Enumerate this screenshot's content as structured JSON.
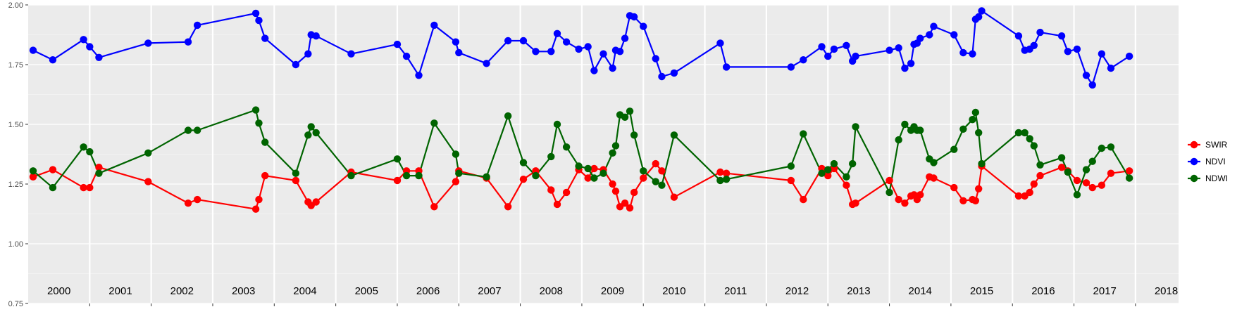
{
  "chart_data": {
    "type": "line",
    "title": "",
    "xlabel": "",
    "ylabel": "",
    "xlim": [
      2000.0,
      2018.7
    ],
    "ylim": [
      0.75,
      2.0
    ],
    "grid": true,
    "legend_position": "right",
    "y_ticks": [
      "0.75",
      "1.00",
      "1.25",
      "1.50",
      "1.75",
      "2.00"
    ],
    "year_labels": [
      "2000",
      "2001",
      "2002",
      "2003",
      "2004",
      "2005",
      "2006",
      "2007",
      "2008",
      "2009",
      "2010",
      "2011",
      "2012",
      "2013",
      "2014",
      "2015",
      "2016",
      "2017",
      "2018"
    ],
    "series": [
      {
        "name": "SWIR",
        "color": "#ff0000",
        "points": [
          [
            2000.08,
            1.28
          ],
          [
            2000.4,
            1.31
          ],
          [
            2000.9,
            1.235
          ],
          [
            2001.0,
            1.235
          ],
          [
            2001.15,
            1.32
          ],
          [
            2001.95,
            1.26
          ],
          [
            2002.6,
            1.17
          ],
          [
            2002.75,
            1.185
          ],
          [
            2003.7,
            1.145
          ],
          [
            2003.75,
            1.185
          ],
          [
            2003.85,
            1.285
          ],
          [
            2004.35,
            1.265
          ],
          [
            2004.55,
            1.175
          ],
          [
            2004.6,
            1.16
          ],
          [
            2004.68,
            1.175
          ],
          [
            2005.25,
            1.3
          ],
          [
            2006.0,
            1.265
          ],
          [
            2006.15,
            1.305
          ],
          [
            2006.35,
            1.305
          ],
          [
            2006.6,
            1.155
          ],
          [
            2006.95,
            1.26
          ],
          [
            2007.0,
            1.305
          ],
          [
            2007.45,
            1.275
          ],
          [
            2007.8,
            1.155
          ],
          [
            2008.05,
            1.27
          ],
          [
            2008.25,
            1.305
          ],
          [
            2008.5,
            1.225
          ],
          [
            2008.6,
            1.165
          ],
          [
            2008.75,
            1.215
          ],
          [
            2008.95,
            1.31
          ],
          [
            2009.1,
            1.275
          ],
          [
            2009.2,
            1.315
          ],
          [
            2009.35,
            1.31
          ],
          [
            2009.5,
            1.25
          ],
          [
            2009.55,
            1.22
          ],
          [
            2009.62,
            1.155
          ],
          [
            2009.7,
            1.17
          ],
          [
            2009.78,
            1.15
          ],
          [
            2009.85,
            1.215
          ],
          [
            2010.0,
            1.275
          ],
          [
            2010.2,
            1.335
          ],
          [
            2010.3,
            1.305
          ],
          [
            2010.5,
            1.195
          ],
          [
            2011.25,
            1.3
          ],
          [
            2011.35,
            1.295
          ],
          [
            2012.4,
            1.265
          ],
          [
            2012.6,
            1.185
          ],
          [
            2012.9,
            1.315
          ],
          [
            2013.0,
            1.285
          ],
          [
            2013.1,
            1.315
          ],
          [
            2013.3,
            1.245
          ],
          [
            2013.4,
            1.165
          ],
          [
            2013.45,
            1.17
          ],
          [
            2014.0,
            1.265
          ],
          [
            2014.15,
            1.185
          ],
          [
            2014.25,
            1.17
          ],
          [
            2014.35,
            1.2
          ],
          [
            2014.4,
            1.205
          ],
          [
            2014.45,
            1.185
          ],
          [
            2014.5,
            1.205
          ],
          [
            2014.65,
            1.28
          ],
          [
            2014.72,
            1.275
          ],
          [
            2015.05,
            1.235
          ],
          [
            2015.2,
            1.18
          ],
          [
            2015.35,
            1.185
          ],
          [
            2015.4,
            1.18
          ],
          [
            2015.45,
            1.23
          ],
          [
            2015.5,
            1.325
          ],
          [
            2016.1,
            1.2
          ],
          [
            2016.2,
            1.2
          ],
          [
            2016.28,
            1.215
          ],
          [
            2016.35,
            1.25
          ],
          [
            2016.45,
            1.285
          ],
          [
            2016.8,
            1.32
          ],
          [
            2016.9,
            1.305
          ],
          [
            2017.05,
            1.265
          ],
          [
            2017.2,
            1.255
          ],
          [
            2017.3,
            1.235
          ],
          [
            2017.45,
            1.245
          ],
          [
            2017.6,
            1.295
          ],
          [
            2017.9,
            1.305
          ]
        ]
      },
      {
        "name": "NDVI",
        "color": "#0000ff",
        "points": [
          [
            2000.08,
            1.81
          ],
          [
            2000.4,
            1.77
          ],
          [
            2000.9,
            1.855
          ],
          [
            2001.0,
            1.825
          ],
          [
            2001.15,
            1.78
          ],
          [
            2001.95,
            1.84
          ],
          [
            2002.6,
            1.845
          ],
          [
            2002.75,
            1.915
          ],
          [
            2003.7,
            1.965
          ],
          [
            2003.75,
            1.935
          ],
          [
            2003.85,
            1.86
          ],
          [
            2004.35,
            1.75
          ],
          [
            2004.55,
            1.795
          ],
          [
            2004.6,
            1.875
          ],
          [
            2004.68,
            1.87
          ],
          [
            2005.25,
            1.795
          ],
          [
            2006.0,
            1.835
          ],
          [
            2006.15,
            1.785
          ],
          [
            2006.35,
            1.705
          ],
          [
            2006.6,
            1.915
          ],
          [
            2006.95,
            1.845
          ],
          [
            2007.0,
            1.8
          ],
          [
            2007.45,
            1.755
          ],
          [
            2007.8,
            1.85
          ],
          [
            2008.05,
            1.85
          ],
          [
            2008.25,
            1.805
          ],
          [
            2008.5,
            1.805
          ],
          [
            2008.6,
            1.88
          ],
          [
            2008.75,
            1.845
          ],
          [
            2008.95,
            1.815
          ],
          [
            2009.1,
            1.825
          ],
          [
            2009.2,
            1.725
          ],
          [
            2009.35,
            1.795
          ],
          [
            2009.5,
            1.735
          ],
          [
            2009.55,
            1.81
          ],
          [
            2009.62,
            1.805
          ],
          [
            2009.7,
            1.86
          ],
          [
            2009.78,
            1.955
          ],
          [
            2009.85,
            1.95
          ],
          [
            2010.0,
            1.91
          ],
          [
            2010.2,
            1.775
          ],
          [
            2010.3,
            1.7
          ],
          [
            2010.5,
            1.715
          ],
          [
            2011.25,
            1.84
          ],
          [
            2011.35,
            1.74
          ],
          [
            2012.4,
            1.74
          ],
          [
            2012.6,
            1.77
          ],
          [
            2012.9,
            1.825
          ],
          [
            2013.0,
            1.785
          ],
          [
            2013.1,
            1.815
          ],
          [
            2013.3,
            1.83
          ],
          [
            2013.4,
            1.765
          ],
          [
            2013.45,
            1.785
          ],
          [
            2014.0,
            1.81
          ],
          [
            2014.15,
            1.82
          ],
          [
            2014.25,
            1.735
          ],
          [
            2014.35,
            1.755
          ],
          [
            2014.4,
            1.835
          ],
          [
            2014.45,
            1.84
          ],
          [
            2014.5,
            1.86
          ],
          [
            2014.65,
            1.875
          ],
          [
            2014.72,
            1.91
          ],
          [
            2015.05,
            1.875
          ],
          [
            2015.2,
            1.8
          ],
          [
            2015.35,
            1.795
          ],
          [
            2015.4,
            1.94
          ],
          [
            2015.45,
            1.95
          ],
          [
            2015.5,
            1.975
          ],
          [
            2016.1,
            1.87
          ],
          [
            2016.2,
            1.81
          ],
          [
            2016.28,
            1.815
          ],
          [
            2016.35,
            1.83
          ],
          [
            2016.45,
            1.885
          ],
          [
            2016.8,
            1.87
          ],
          [
            2016.9,
            1.805
          ],
          [
            2017.05,
            1.815
          ],
          [
            2017.2,
            1.705
          ],
          [
            2017.3,
            1.665
          ],
          [
            2017.45,
            1.795
          ],
          [
            2017.6,
            1.735
          ],
          [
            2017.9,
            1.785
          ]
        ]
      },
      {
        "name": "NDWI",
        "color": "#006400",
        "points": [
          [
            2000.08,
            1.305
          ],
          [
            2000.4,
            1.235
          ],
          [
            2000.9,
            1.405
          ],
          [
            2001.0,
            1.385
          ],
          [
            2001.15,
            1.295
          ],
          [
            2001.95,
            1.38
          ],
          [
            2002.6,
            1.475
          ],
          [
            2002.75,
            1.475
          ],
          [
            2003.7,
            1.56
          ],
          [
            2003.75,
            1.505
          ],
          [
            2003.85,
            1.425
          ],
          [
            2004.35,
            1.295
          ],
          [
            2004.55,
            1.455
          ],
          [
            2004.6,
            1.49
          ],
          [
            2004.68,
            1.465
          ],
          [
            2005.25,
            1.285
          ],
          [
            2006.0,
            1.355
          ],
          [
            2006.15,
            1.285
          ],
          [
            2006.35,
            1.285
          ],
          [
            2006.6,
            1.505
          ],
          [
            2006.95,
            1.375
          ],
          [
            2007.0,
            1.295
          ],
          [
            2007.45,
            1.28
          ],
          [
            2007.8,
            1.535
          ],
          [
            2008.05,
            1.34
          ],
          [
            2008.25,
            1.285
          ],
          [
            2008.5,
            1.365
          ],
          [
            2008.6,
            1.5
          ],
          [
            2008.75,
            1.405
          ],
          [
            2008.95,
            1.325
          ],
          [
            2009.1,
            1.315
          ],
          [
            2009.2,
            1.275
          ],
          [
            2009.35,
            1.295
          ],
          [
            2009.5,
            1.38
          ],
          [
            2009.55,
            1.41
          ],
          [
            2009.62,
            1.54
          ],
          [
            2009.7,
            1.53
          ],
          [
            2009.78,
            1.555
          ],
          [
            2009.85,
            1.455
          ],
          [
            2010.0,
            1.305
          ],
          [
            2010.2,
            1.26
          ],
          [
            2010.3,
            1.245
          ],
          [
            2010.5,
            1.455
          ],
          [
            2011.25,
            1.265
          ],
          [
            2011.35,
            1.27
          ],
          [
            2012.4,
            1.325
          ],
          [
            2012.6,
            1.46
          ],
          [
            2012.9,
            1.295
          ],
          [
            2013.0,
            1.31
          ],
          [
            2013.1,
            1.335
          ],
          [
            2013.3,
            1.28
          ],
          [
            2013.4,
            1.335
          ],
          [
            2013.45,
            1.49
          ],
          [
            2014.0,
            1.215
          ],
          [
            2014.15,
            1.435
          ],
          [
            2014.25,
            1.5
          ],
          [
            2014.35,
            1.475
          ],
          [
            2014.4,
            1.49
          ],
          [
            2014.45,
            1.475
          ],
          [
            2014.5,
            1.475
          ],
          [
            2014.65,
            1.355
          ],
          [
            2014.72,
            1.34
          ],
          [
            2015.05,
            1.395
          ],
          [
            2015.2,
            1.48
          ],
          [
            2015.35,
            1.52
          ],
          [
            2015.4,
            1.55
          ],
          [
            2015.45,
            1.465
          ],
          [
            2015.5,
            1.335
          ],
          [
            2016.1,
            1.465
          ],
          [
            2016.2,
            1.465
          ],
          [
            2016.28,
            1.44
          ],
          [
            2016.35,
            1.41
          ],
          [
            2016.45,
            1.33
          ],
          [
            2016.8,
            1.36
          ],
          [
            2016.9,
            1.3
          ],
          [
            2017.05,
            1.205
          ],
          [
            2017.2,
            1.31
          ],
          [
            2017.3,
            1.345
          ],
          [
            2017.45,
            1.4
          ],
          [
            2017.6,
            1.405
          ],
          [
            2017.9,
            1.275
          ]
        ]
      }
    ]
  }
}
